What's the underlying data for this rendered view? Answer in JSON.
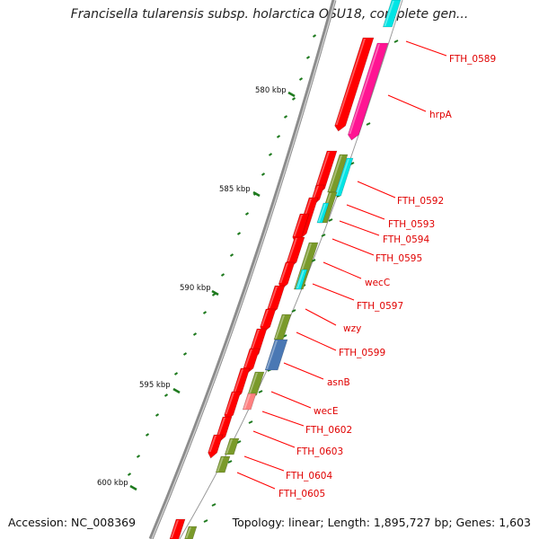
{
  "title": "Francisella tularensis subsp. holarctica OSU18, complete gen...",
  "footer": {
    "accession": "Accession: NC_008369",
    "summary": "Topology: linear; Length: 1,895,727 bp; Genes: 1,603"
  },
  "colors": {
    "backbone": "#8c8c8c",
    "tick": "#1e7a1e",
    "cds": "#ff0000",
    "rrna": "#ff1493",
    "trna": "#00e5e5",
    "misc": "#7a9a2a",
    "blue": "#4a78b4",
    "pink": "#ff8080",
    "label_line": "#ff0000"
  },
  "kbp_markers": [
    {
      "label": "580 kbp"
    },
    {
      "label": "585 kbp"
    },
    {
      "label": "590 kbp"
    },
    {
      "label": "595 kbp"
    },
    {
      "label": "600 kbp"
    }
  ],
  "gene_labels": [
    {
      "name": "FTH_0589"
    },
    {
      "name": "hrpA"
    },
    {
      "name": "FTH_0592"
    },
    {
      "name": "FTH_0593"
    },
    {
      "name": "FTH_0594"
    },
    {
      "name": "FTH_0595"
    },
    {
      "name": "wecC"
    },
    {
      "name": "FTH_0597"
    },
    {
      "name": "wzy"
    },
    {
      "name": "FTH_0599"
    },
    {
      "name": "asnB"
    },
    {
      "name": "wecE"
    },
    {
      "name": "FTH_0602"
    },
    {
      "name": "FTH_0603"
    },
    {
      "name": "FTH_0604"
    },
    {
      "name": "FTH_0605"
    }
  ]
}
